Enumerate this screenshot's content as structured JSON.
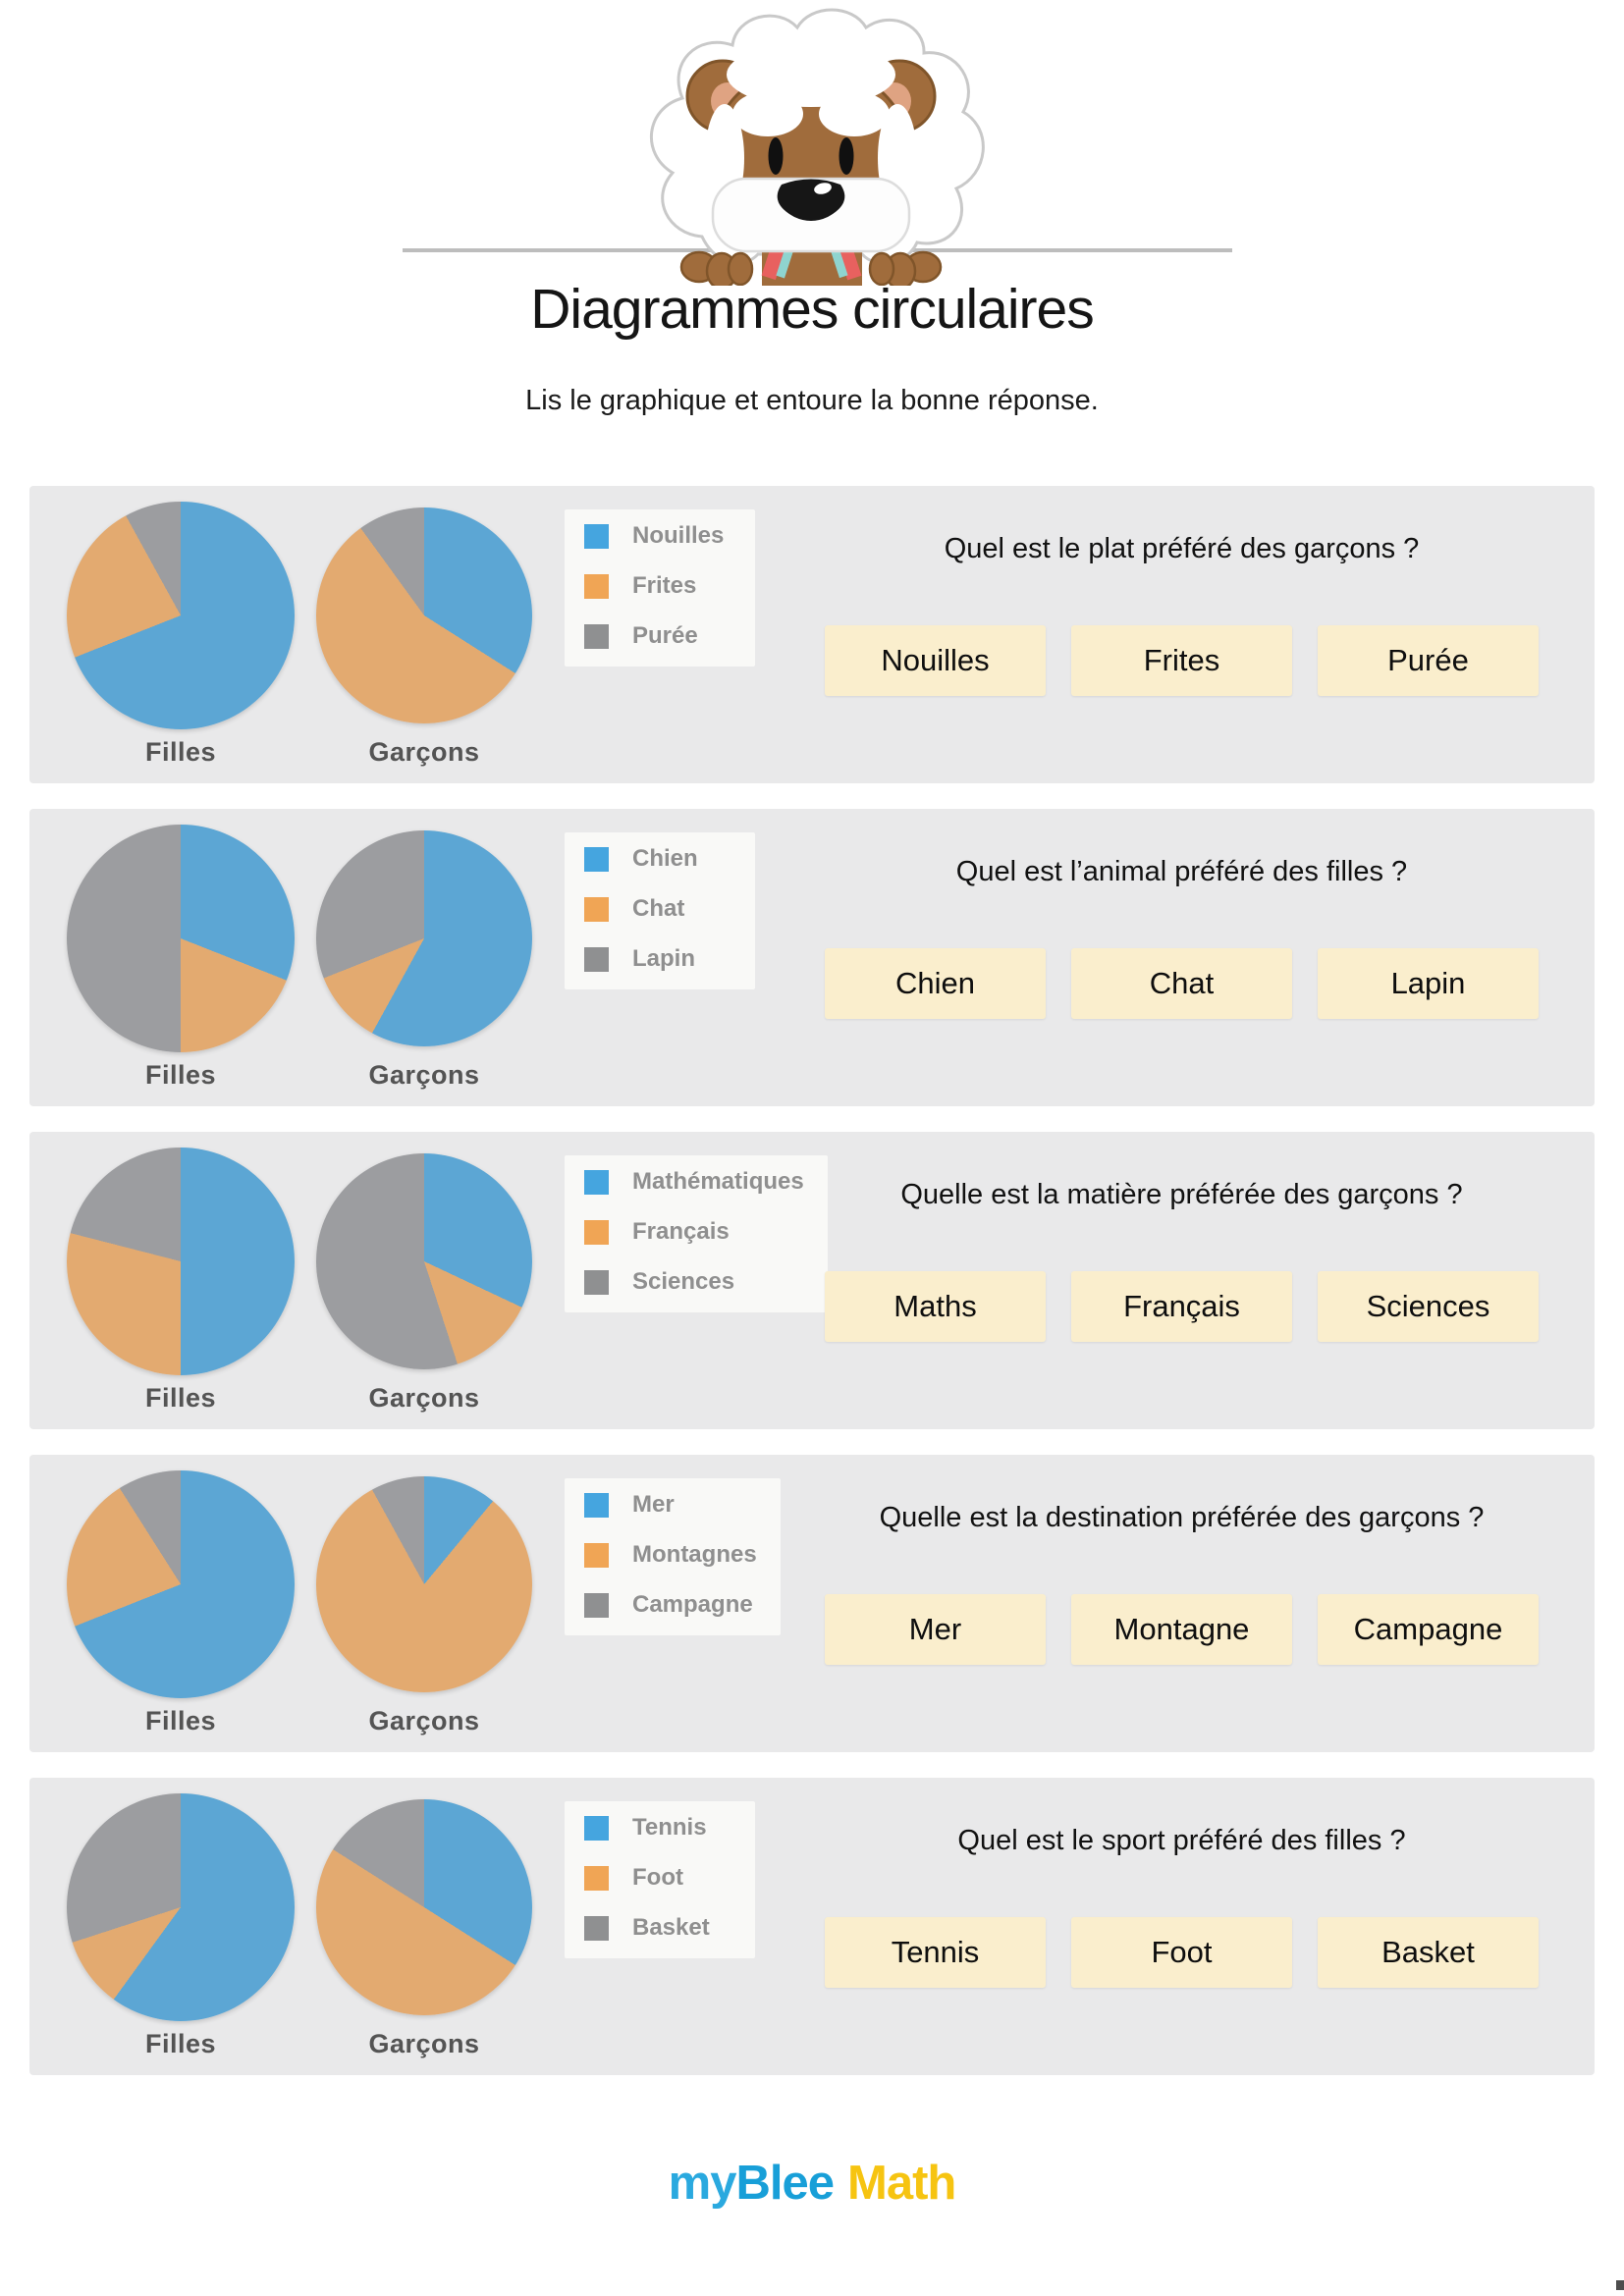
{
  "header": {
    "title": "Diagrammes circulaires",
    "subtitle": "Lis le graphique et entoure la bonne réponse.",
    "mascot": "einstein-dog-mascot"
  },
  "colors": {
    "row_background": "#E9E9EA",
    "answer_button_background": "#FAEECD",
    "legend_palette": [
      "#45A5DF",
      "#F0A555",
      "#8F9091"
    ],
    "pie_palette": [
      "#5CA6D4",
      "#E3AA70",
      "#9C9DA0"
    ],
    "logo_blue": "#189FD8",
    "logo_yellow": "#F6C411"
  },
  "rows": [
    {
      "question": "Quel est le plat préféré des garçons ?",
      "answers": [
        "Nouilles",
        "Frites",
        "Purée"
      ]
    },
    {
      "question": "Quel est l’animal préféré des filles ?",
      "answers": [
        "Chien",
        "Chat",
        "Lapin"
      ]
    },
    {
      "question": "Quelle est la matière préférée des garçons ?",
      "answers": [
        "Maths",
        "Français",
        "Sciences"
      ]
    },
    {
      "question": "Quelle est la destination préférée des garçons ?",
      "answers": [
        "Mer",
        "Montagne",
        "Campagne"
      ]
    },
    {
      "question": "Quel est le sport préféré des filles ?",
      "answers": [
        "Tennis",
        "Foot",
        "Basket"
      ]
    }
  ],
  "chart_data": [
    {
      "type": "pie",
      "title": "Quel est le plat préféré des garçons ?",
      "categories": [
        "Nouilles",
        "Frites",
        "Purée"
      ],
      "series": [
        {
          "name": "Filles",
          "values": [
            69,
            23,
            8
          ]
        },
        {
          "name": "Garçons",
          "values": [
            34,
            56,
            10
          ]
        }
      ],
      "colors": [
        "#5CA6D4",
        "#E3AA70",
        "#9C9DA0"
      ],
      "legend_position": "left",
      "units": "percent"
    },
    {
      "type": "pie",
      "title": "Quel est l’animal préféré des filles ?",
      "categories": [
        "Chien",
        "Chat",
        "Lapin"
      ],
      "series": [
        {
          "name": "Filles",
          "values": [
            31,
            19,
            50
          ]
        },
        {
          "name": "Garçons",
          "values": [
            58,
            11,
            31
          ]
        }
      ],
      "colors": [
        "#5CA6D4",
        "#E3AA70",
        "#9C9DA0"
      ],
      "legend_position": "left",
      "units": "percent"
    },
    {
      "type": "pie",
      "title": "Quelle est la matière préférée des garçons ?",
      "categories": [
        "Mathématiques",
        "Français",
        "Sciences"
      ],
      "series": [
        {
          "name": "Filles",
          "values": [
            50,
            29,
            21
          ]
        },
        {
          "name": "Garçons",
          "values": [
            32,
            13,
            55
          ]
        }
      ],
      "colors": [
        "#5CA6D4",
        "#E3AA70",
        "#9C9DA0"
      ],
      "legend_position": "left",
      "units": "percent"
    },
    {
      "type": "pie",
      "title": "Quelle est la destination préférée des garçons ?",
      "categories": [
        "Mer",
        "Montagnes",
        "Campagne"
      ],
      "series": [
        {
          "name": "Filles",
          "values": [
            69,
            22,
            9
          ]
        },
        {
          "name": "Garçons",
          "values": [
            11,
            81,
            8
          ]
        }
      ],
      "colors": [
        "#5CA6D4",
        "#E3AA70",
        "#9C9DA0"
      ],
      "legend_position": "left",
      "units": "percent"
    },
    {
      "type": "pie",
      "title": "Quel est le sport préféré des filles ?",
      "categories": [
        "Tennis",
        "Foot",
        "Basket"
      ],
      "series": [
        {
          "name": "Filles",
          "values": [
            60,
            10,
            30
          ]
        },
        {
          "name": "Garçons",
          "values": [
            34,
            50,
            16
          ]
        }
      ],
      "colors": [
        "#5CA6D4",
        "#E3AA70",
        "#9C9DA0"
      ],
      "legend_position": "left",
      "units": "percent"
    }
  ],
  "footer": {
    "logo": {
      "my": "my",
      "blee": "Blee",
      "math": "Math"
    }
  }
}
